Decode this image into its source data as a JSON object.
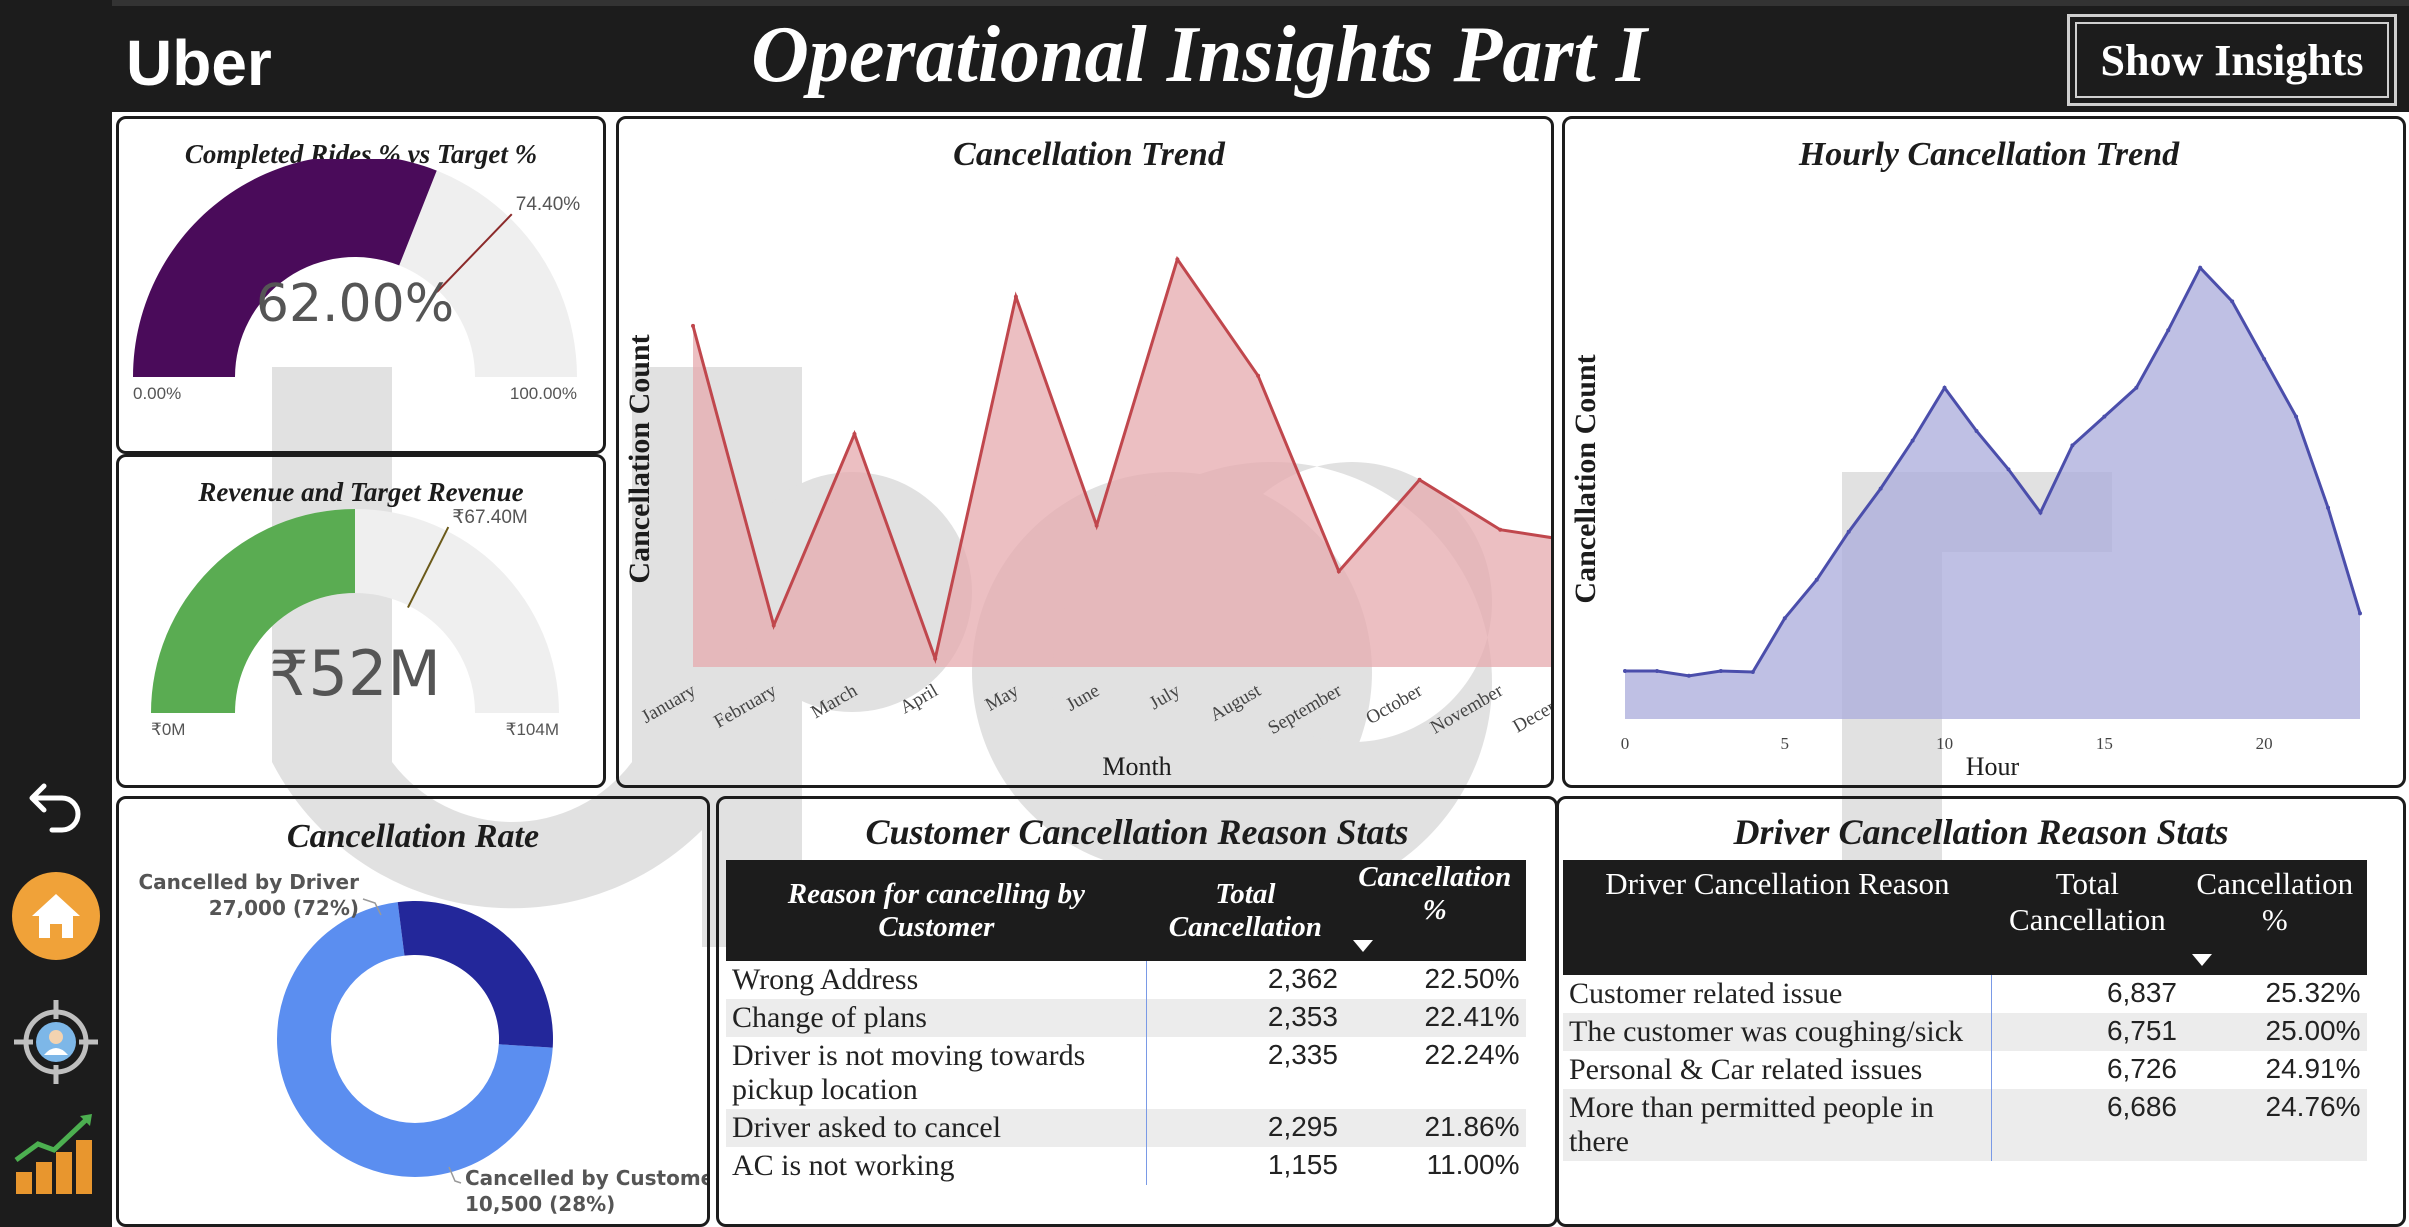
{
  "header": {
    "brand": "Uber",
    "title": "Operational Insights Part I",
    "show_insights_label": "Show Insights"
  },
  "sidebar": {
    "items": [
      {
        "name": "back",
        "icon": "undo-arrow-icon"
      },
      {
        "name": "home",
        "icon": "home-icon"
      },
      {
        "name": "driver",
        "icon": "target-user-icon"
      },
      {
        "name": "growth",
        "icon": "growth-chart-icon"
      }
    ]
  },
  "colors": {
    "dark": "#1c1c1c",
    "purple": "#4a0b5a",
    "green": "#5aac52",
    "trend_red": "#c0474d",
    "trend_fill": "#e6a9ad",
    "hourly_line": "#4b4eab",
    "hourly_fill": "#a9abdb",
    "donut_driver": "#5b8ef0",
    "donut_customer": "#23279a",
    "watermark": "#dcdcdc"
  },
  "gauge_rides": {
    "title": "Completed Rides % vs Target %",
    "value": 62.0,
    "value_label": "62.00%",
    "target": 74.4,
    "target_label": "74.40%",
    "min_label": "0.00%",
    "max_label": "100.00%",
    "min": 0,
    "max": 100
  },
  "gauge_revenue": {
    "title": "Revenue and Target Revenue",
    "value": 52,
    "value_label": "₹52M",
    "target": 67.4,
    "target_label": "₹67.40M",
    "min_label": "₹0M",
    "max_label": "₹104M",
    "min": 0,
    "max": 104
  },
  "chart_data": [
    {
      "type": "area",
      "title": "Cancellation Trend",
      "xlabel": "Month",
      "ylabel": "Cancellation Count",
      "categories": [
        "January",
        "February",
        "March",
        "April",
        "May",
        "June",
        "July",
        "August",
        "September",
        "October",
        "November",
        "December"
      ],
      "values": [
        820,
        100,
        560,
        20,
        890,
        340,
        980,
        700,
        230,
        450,
        330,
        300
      ],
      "ylim": [
        0,
        1000
      ],
      "grid": false
    },
    {
      "type": "area",
      "title": "Hourly Cancellation Trend",
      "xlabel": "Hour",
      "ylabel": "Cancellation Count",
      "x": [
        0,
        1,
        2,
        3,
        4,
        5,
        6,
        7,
        8,
        9,
        10,
        11,
        12,
        13,
        14,
        15,
        16,
        17,
        18,
        19,
        20,
        21,
        22,
        23
      ],
      "values": [
        100,
        100,
        90,
        100,
        98,
        210,
        290,
        390,
        480,
        580,
        690,
        600,
        520,
        430,
        570,
        630,
        690,
        810,
        940,
        870,
        750,
        630,
        440,
        220
      ],
      "xticks": [
        "0",
        "5",
        "10",
        "15",
        "20"
      ],
      "ylim": [
        0,
        1000
      ],
      "grid": false
    },
    {
      "type": "pie",
      "title": "Cancellation Rate",
      "donut": true,
      "slices": [
        {
          "label": "Cancelled by Driver",
          "value": 27000,
          "value_label": "27,000 (72%)"
        },
        {
          "label": "Cancelled by Customer",
          "value": 10500,
          "value_label": "10,500 (28%)"
        }
      ]
    }
  ],
  "customer_table": {
    "title": "Customer Cancellation Reason Stats",
    "headers": [
      "Reason for cancelling by Customer",
      "Total Cancellation",
      "Cancellation %"
    ],
    "rows": [
      [
        "Wrong Address",
        "2,362",
        "22.50%"
      ],
      [
        "Change of plans",
        "2,353",
        "22.41%"
      ],
      [
        "Driver is not moving towards pickup location",
        "2,335",
        "22.24%"
      ],
      [
        "Driver asked to cancel",
        "2,295",
        "21.86%"
      ],
      [
        "AC is not working",
        "1,155",
        "11.00%"
      ]
    ]
  },
  "driver_table": {
    "title": "Driver Cancellation Reason Stats",
    "headers": [
      "Driver Cancellation Reason",
      "Total Cancellation",
      "Cancellation %"
    ],
    "rows": [
      [
        "Customer related issue",
        "6,837",
        "25.32%"
      ],
      [
        "The customer was coughing/sick",
        "6,751",
        "25.00%"
      ],
      [
        "Personal & Car related issues",
        "6,726",
        "24.91%"
      ],
      [
        "More than permitted people in there",
        "6,686",
        "24.76%"
      ]
    ]
  }
}
